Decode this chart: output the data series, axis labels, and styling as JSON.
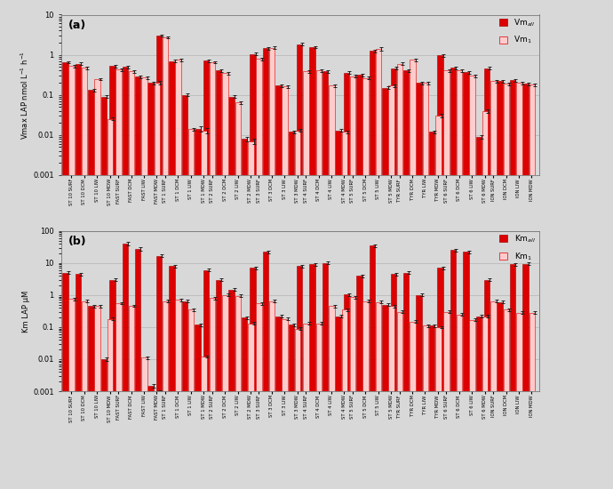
{
  "groups": [
    "ST 10 SURF",
    "ST 10 DCM",
    "ST 10 LIW",
    "ST 10 MDW",
    "FAST SURF",
    "FAST DCM",
    "FAST LIW",
    "FAST MDW",
    "ST 1 SURF",
    "ST 1 DCM",
    "ST 1 LIW",
    "ST 1 MDW",
    "ST 2 SURF",
    "ST 2 DCM",
    "ST 2 LIW",
    "ST 2 MDW",
    "ST 3 SURF",
    "ST 3 DCM",
    "ST 3 LIW",
    "ST 3 MDW",
    "ST 4 SURF",
    "ST 4 DCM",
    "ST 4 LIW",
    "ST 4 MDW",
    "ST 5 SURF",
    "ST 5 DCM",
    "ST 5 LIW",
    "ST 5 MDW",
    "TYR SURF",
    "TYR DCM",
    "TYR LIW",
    "TYR MDW",
    "ST 6 SURF",
    "ST 6 DCM",
    "ST 6 LIW",
    "ST 6 MDW",
    "ION SURF",
    "ION DCM",
    "ION LIW",
    "ION MDW"
  ],
  "group_sizes": [
    4,
    4,
    4,
    4,
    4,
    4,
    4,
    4,
    4,
    4
  ],
  "vm_all": [
    0.65,
    0.6,
    0.13,
    0.09,
    0.52,
    0.5,
    0.28,
    0.2,
    3.0,
    0.7,
    0.1,
    0.014,
    0.72,
    0.4,
    0.09,
    0.008,
    1.05,
    1.45,
    0.17,
    0.012,
    1.85,
    1.55,
    0.38,
    0.013,
    0.36,
    0.31,
    1.25,
    0.15,
    0.46,
    0.4,
    0.2,
    0.012,
    0.97,
    0.47,
    0.37,
    0.009,
    0.46,
    0.22,
    0.23,
    0.19
  ],
  "vm1": [
    0.52,
    0.47,
    0.25,
    0.025,
    0.43,
    0.38,
    0.27,
    0.2,
    2.75,
    0.75,
    0.014,
    0.013,
    0.65,
    0.35,
    0.065,
    0.007,
    0.78,
    1.5,
    0.16,
    0.013,
    0.38,
    0.4,
    0.17,
    0.012,
    0.29,
    0.26,
    1.4,
    0.17,
    0.6,
    0.75,
    0.2,
    0.03,
    0.4,
    0.4,
    0.3,
    0.04,
    0.22,
    0.19,
    0.2,
    0.18
  ],
  "vm_all_err": [
    0.04,
    0.04,
    0.01,
    0.006,
    0.04,
    0.04,
    0.02,
    0.015,
    0.18,
    0.055,
    0.008,
    0.002,
    0.055,
    0.03,
    0.007,
    0.001,
    0.07,
    0.09,
    0.013,
    0.001,
    0.13,
    0.11,
    0.028,
    0.001,
    0.028,
    0.024,
    0.09,
    0.011,
    0.038,
    0.03,
    0.015,
    0.001,
    0.075,
    0.038,
    0.028,
    0.001,
    0.038,
    0.016,
    0.017,
    0.014
  ],
  "vm1_err": [
    0.035,
    0.035,
    0.012,
    0.002,
    0.033,
    0.033,
    0.022,
    0.018,
    0.13,
    0.065,
    0.001,
    0.002,
    0.048,
    0.028,
    0.005,
    0.001,
    0.065,
    0.11,
    0.013,
    0.001,
    0.028,
    0.032,
    0.013,
    0.001,
    0.023,
    0.02,
    0.11,
    0.013,
    0.048,
    0.055,
    0.016,
    0.003,
    0.033,
    0.033,
    0.023,
    0.004,
    0.017,
    0.014,
    0.015,
    0.014
  ],
  "km_all": [
    5.0,
    4.5,
    0.45,
    0.01,
    3.0,
    40.0,
    28.0,
    0.0015,
    17.0,
    8.0,
    0.65,
    0.12,
    6.0,
    3.0,
    1.5,
    0.2,
    7.0,
    22.0,
    0.22,
    0.12,
    8.0,
    9.0,
    10.0,
    0.22,
    1.05,
    4.0,
    35.0,
    0.5,
    4.5,
    5.0,
    1.0,
    0.11,
    7.0,
    25.0,
    22.0,
    0.22,
    3.0,
    0.6,
    9.0,
    9.5
  ],
  "km1": [
    0.75,
    0.65,
    0.45,
    0.18,
    0.55,
    0.45,
    0.011,
    0.001,
    0.65,
    0.7,
    0.35,
    0.012,
    0.8,
    1.0,
    0.95,
    0.13,
    0.55,
    0.65,
    0.18,
    0.09,
    0.13,
    0.13,
    0.45,
    0.35,
    0.85,
    0.65,
    0.6,
    0.45,
    0.3,
    0.15,
    0.11,
    0.1,
    0.3,
    0.25,
    0.17,
    0.22,
    0.65,
    0.35,
    0.28,
    0.28
  ],
  "km_all_err": [
    0.45,
    0.38,
    0.04,
    0.001,
    0.28,
    5.0,
    3.5,
    0.0002,
    1.8,
    0.75,
    0.055,
    0.011,
    0.55,
    0.28,
    0.14,
    0.018,
    0.65,
    2.0,
    0.019,
    0.011,
    0.75,
    0.85,
    0.95,
    0.02,
    0.095,
    0.38,
    3.2,
    0.048,
    0.42,
    0.48,
    0.095,
    0.01,
    0.65,
    2.3,
    2.0,
    0.02,
    0.28,
    0.055,
    0.85,
    0.9
  ],
  "km1_err": [
    0.075,
    0.055,
    0.038,
    0.016,
    0.038,
    0.028,
    0.001,
    0.0001,
    0.065,
    0.065,
    0.028,
    0.001,
    0.075,
    0.095,
    0.085,
    0.012,
    0.048,
    0.055,
    0.016,
    0.008,
    0.012,
    0.012,
    0.042,
    0.032,
    0.08,
    0.06,
    0.055,
    0.042,
    0.028,
    0.014,
    0.01,
    0.009,
    0.028,
    0.023,
    0.016,
    0.02,
    0.06,
    0.032,
    0.026,
    0.026
  ],
  "bar_color_all": "#dd0000",
  "bar_color_1_face": "#ffcccc",
  "bar_color_1_edge": "#dd0000",
  "bar_edge_color": "#aa0000",
  "ylabel_a": "Vmax LAP nmol L$^{-1}$ h$^{-1}$",
  "ylabel_b": "Km LAP μM",
  "legend_labels_a": [
    "Vm$_{all}$",
    "Vm$_1$"
  ],
  "legend_labels_b": [
    "Km$_{all}$",
    "Km$_1$"
  ],
  "ylim_a": [
    0.001,
    10
  ],
  "ylim_b": [
    0.001,
    100
  ],
  "label_a": "(a)",
  "label_b": "(b)",
  "bg_color": "#d8d8d8",
  "ax_bg_color": "#d8d8d8"
}
